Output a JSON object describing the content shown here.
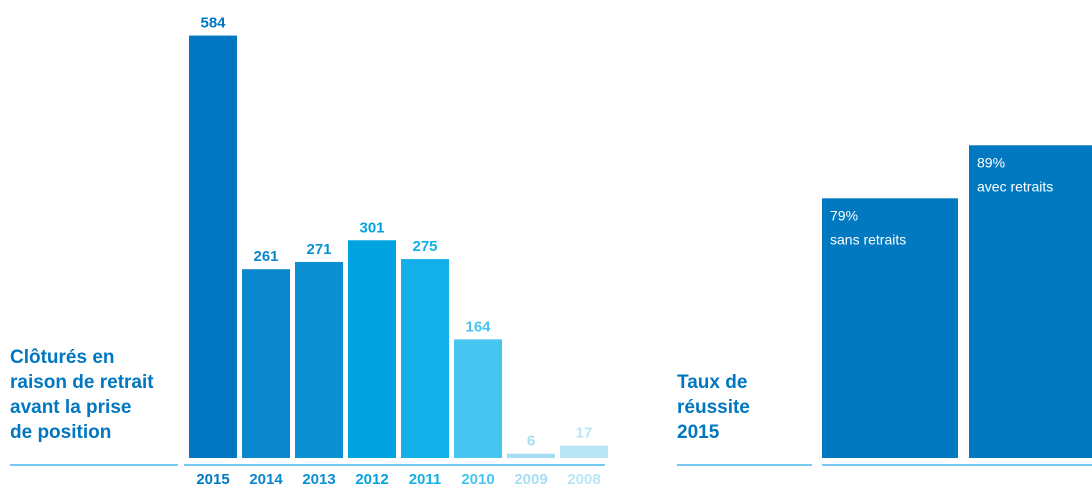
{
  "chart_data": [
    {
      "type": "bar",
      "title": [
        "Clôturés en",
        "raison de retrait",
        "avant la prise",
        "de position"
      ],
      "categories": [
        "2015",
        "2014",
        "2013",
        "2012",
        "2011",
        "2010",
        "2009",
        "2008"
      ],
      "values": [
        584,
        261,
        271,
        301,
        275,
        164,
        6,
        17
      ],
      "colors": [
        "#0077c0",
        "#0a86cc",
        "#0c90d4",
        "#00a3e0",
        "#12afe8",
        "#45c5f0",
        "#a8def5",
        "#b9e5f7"
      ],
      "ylim": [
        0,
        600
      ]
    },
    {
      "type": "labeled-bar",
      "title": [
        "Taux de",
        "réussite",
        "2015"
      ],
      "categories": [
        "sans retraits",
        "avec retraits"
      ],
      "values": [
        79,
        89
      ],
      "value_labels": [
        "79%",
        "89%"
      ],
      "colors": [
        "#0079c1",
        "#0079c1"
      ],
      "ylim": [
        30,
        100
      ]
    }
  ]
}
